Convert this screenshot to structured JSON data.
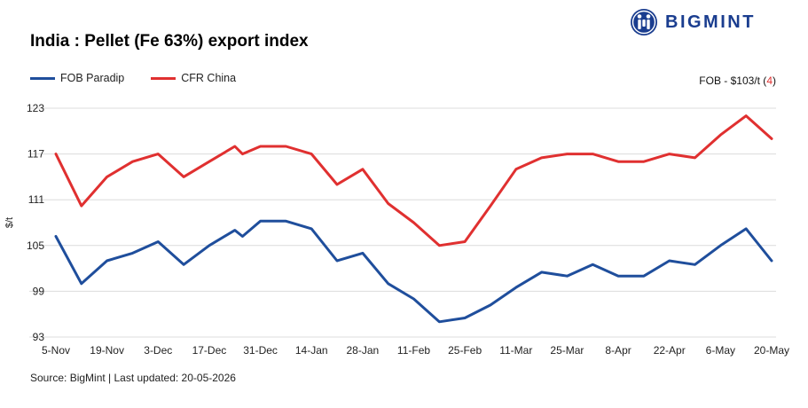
{
  "title": "India : Pellet (Fe 63%) export index",
  "brand": {
    "name": "BIGMINT",
    "color": "#1a3d8f",
    "icon": "bigmint-logo-icon"
  },
  "note": {
    "prefix": "FOB - $103/t (",
    "value": "4",
    "suffix": ")",
    "highlight_color": "#e03030"
  },
  "source": "Source: BigMint | Last updated: 20-05-2026",
  "chart_data": {
    "type": "line",
    "ylabel": "$/t",
    "xlabel": "",
    "ylim": [
      93,
      123
    ],
    "yticks": [
      93,
      99,
      105,
      111,
      117,
      123
    ],
    "grid": "horizontal",
    "legend_position": "top-left",
    "xlim": [
      0,
      28
    ],
    "xticks": [
      {
        "x": 0,
        "label": "5-Nov"
      },
      {
        "x": 2,
        "label": "19-Nov"
      },
      {
        "x": 4,
        "label": "3-Dec"
      },
      {
        "x": 6,
        "label": "17-Dec"
      },
      {
        "x": 8,
        "label": "31-Dec"
      },
      {
        "x": 10,
        "label": "14-Jan"
      },
      {
        "x": 12,
        "label": "28-Jan"
      },
      {
        "x": 14,
        "label": "11-Feb"
      },
      {
        "x": 16,
        "label": "25-Feb"
      },
      {
        "x": 18,
        "label": "11-Mar"
      },
      {
        "x": 20,
        "label": "25-Mar"
      },
      {
        "x": 22,
        "label": "8-Apr"
      },
      {
        "x": 24,
        "label": "22-Apr"
      },
      {
        "x": 26,
        "label": "6-May"
      },
      {
        "x": 28,
        "label": "20-May"
      }
    ],
    "series": [
      {
        "name": "FOB Paradip",
        "color": "#1f4e9c",
        "points": [
          [
            0,
            106.2
          ],
          [
            1,
            100
          ],
          [
            2,
            103
          ],
          [
            3,
            104
          ],
          [
            4,
            105.5
          ],
          [
            5,
            102.5
          ],
          [
            6,
            105
          ],
          [
            7,
            107
          ],
          [
            7.3,
            106.2
          ],
          [
            8,
            108.2
          ],
          [
            9,
            108.2
          ],
          [
            10,
            107.2
          ],
          [
            11,
            103
          ],
          [
            12,
            104
          ],
          [
            13,
            100
          ],
          [
            14,
            98
          ],
          [
            15,
            95
          ],
          [
            16,
            95.5
          ],
          [
            17,
            97.2
          ],
          [
            18,
            99.5
          ],
          [
            19,
            101.5
          ],
          [
            20,
            101
          ],
          [
            21,
            102.5
          ],
          [
            22,
            101
          ],
          [
            23,
            101
          ],
          [
            24,
            103
          ],
          [
            25,
            102.5
          ],
          [
            26,
            105
          ],
          [
            27,
            107.2
          ],
          [
            28,
            103
          ]
        ]
      },
      {
        "name": "CFR China",
        "color": "#e03030",
        "points": [
          [
            0,
            117
          ],
          [
            1,
            110.2
          ],
          [
            2,
            114
          ],
          [
            3,
            116
          ],
          [
            4,
            117
          ],
          [
            5,
            114
          ],
          [
            6,
            116
          ],
          [
            7,
            118
          ],
          [
            7.3,
            117
          ],
          [
            8,
            118
          ],
          [
            9,
            118
          ],
          [
            10,
            117
          ],
          [
            11,
            113
          ],
          [
            12,
            115
          ],
          [
            13,
            110.5
          ],
          [
            14,
            108
          ],
          [
            15,
            105
          ],
          [
            16,
            105.5
          ],
          [
            17,
            110.2
          ],
          [
            18,
            115
          ],
          [
            19,
            116.5
          ],
          [
            20,
            117
          ],
          [
            21,
            117
          ],
          [
            22,
            116
          ],
          [
            23,
            116
          ],
          [
            24,
            117
          ],
          [
            25,
            116.5
          ],
          [
            26,
            119.5
          ],
          [
            27,
            122
          ],
          [
            28,
            119
          ]
        ]
      }
    ]
  }
}
